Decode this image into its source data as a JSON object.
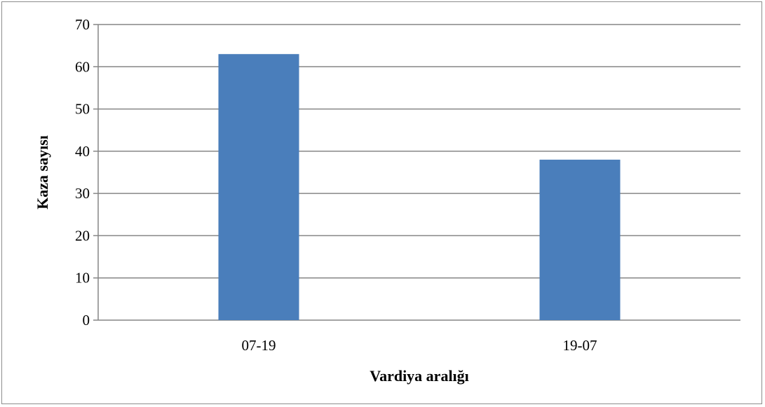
{
  "chart_data": {
    "type": "bar",
    "categories": [
      "07-19",
      "19-07"
    ],
    "values": [
      63,
      38
    ],
    "title": "",
    "xlabel": "Vardiya aralığı",
    "ylabel": "Kaza sayısı",
    "ylim": [
      0,
      70
    ],
    "yticks": [
      0,
      10,
      20,
      30,
      40,
      50,
      60,
      70
    ],
    "grid": true,
    "legend": "none",
    "colors": {
      "bar": "#4a7ebb",
      "grid": "#868686",
      "axis": "#868686"
    }
  }
}
